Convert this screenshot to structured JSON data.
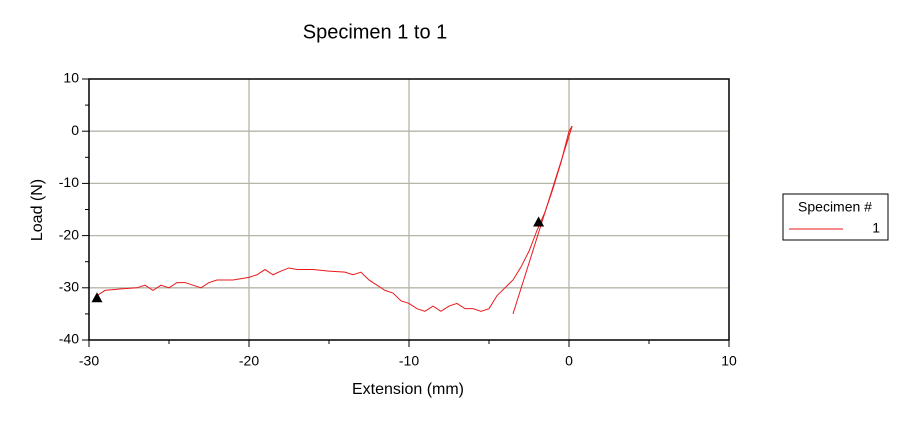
{
  "chart_data": {
    "type": "line",
    "title": "Specimen 1 to 1",
    "x_label": "Extension (mm)",
    "y_label": "Load (N)",
    "xlim": [
      -30,
      10
    ],
    "ylim": [
      -40,
      10
    ],
    "xticks": [
      -30,
      -20,
      -10,
      0,
      10
    ],
    "yticks": [
      10,
      0,
      -10,
      -20,
      -30,
      -40
    ],
    "xminor": [
      -25,
      -15,
      -5,
      5
    ],
    "yminor": [
      5,
      -5,
      -15,
      -25,
      -35
    ],
    "grid": true,
    "legend_title": "Specimen #",
    "legend": "right",
    "series": [
      {
        "name": "1",
        "color": "#e8191c",
        "x": [
          -29.5,
          -29,
          -28,
          -27,
          -26.5,
          -26,
          -25.5,
          -25,
          -24.5,
          -24,
          -23.5,
          -23,
          -22.5,
          -22,
          -21,
          -20,
          -19.5,
          -19,
          -18.5,
          -18,
          -17.5,
          -17,
          -16,
          -15,
          -14,
          -13.5,
          -13,
          -12.5,
          -12,
          -11.5,
          -11,
          -10.5,
          -10,
          -9.5,
          -9,
          -8.5,
          -8,
          -7.5,
          -7,
          -6.5,
          -6,
          -5.5,
          -5,
          -4.5,
          -4,
          -3.5,
          -3,
          -2.5,
          -2,
          -1.5,
          -1,
          -0.5,
          0,
          0.2
        ],
        "values": [
          -31.5,
          -30.5,
          -30.2,
          -30,
          -29.5,
          -30.5,
          -29.5,
          -30,
          -29,
          -29,
          -29.5,
          -30,
          -29,
          -28.5,
          -28.5,
          -28,
          -27.5,
          -26.5,
          -27.5,
          -26.8,
          -26.2,
          -26.5,
          -26.5,
          -26.8,
          -27,
          -27.5,
          -27,
          -28.5,
          -29.5,
          -30.5,
          -31,
          -32.5,
          -33,
          -34,
          -34.5,
          -33.5,
          -34.5,
          -33.5,
          -33,
          -34,
          -34,
          -34.5,
          -34,
          -31.5,
          -30,
          -28.5,
          -26,
          -23,
          -19,
          -15.5,
          -11,
          -6,
          0,
          1
        ]
      }
    ],
    "fit_line": {
      "color": "#e8191c",
      "x": [
        -3.5,
        0.2
      ],
      "values": [
        -35,
        1
      ]
    },
    "markers": {
      "color": "#000000",
      "x": [
        -29.5,
        -1.9
      ],
      "values": [
        -32,
        -17.5
      ]
    }
  }
}
